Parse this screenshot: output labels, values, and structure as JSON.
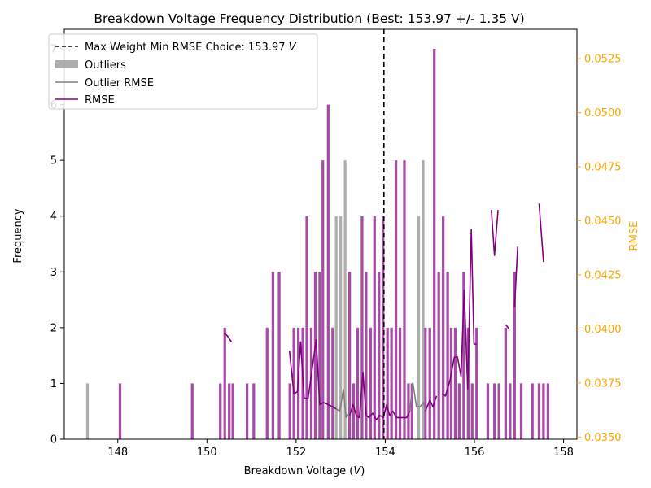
{
  "chart_data": {
    "type": "bar",
    "title": "Breakdown Voltage Frequency Distribution (Best: 153.97 +/- 1.35 V)",
    "xlabel_text": "Breakdown Voltage (",
    "xlabel_unit": "V",
    "xlabel_close": ")",
    "ylabel": "Frequency",
    "y2label": "RMSE",
    "xlim": [
      146.8,
      158.3
    ],
    "ylim": [
      0,
      7.35
    ],
    "y2lim": [
      0.0349,
      0.05386
    ],
    "xticks": [
      148,
      150,
      152,
      154,
      156,
      158
    ],
    "yticks": [
      0,
      1,
      2,
      3,
      4,
      5,
      6,
      7
    ],
    "y2ticks": [
      "0.0350",
      "0.0375",
      "0.0400",
      "0.0425",
      "0.0450",
      "0.0475",
      "0.0500",
      "0.0525"
    ],
    "bin_width": 0.0958,
    "best_value": 153.97,
    "legend": {
      "placement": "upper-left",
      "entries": {
        "best_text": "Max Weight Min RMSE Choice: 153.97 ",
        "best_unit": "V",
        "outliers": "Outliers",
        "outlier_rmse": "Outlier RMSE",
        "rmse": "RMSE"
      }
    },
    "colors": {
      "hist": "#800080",
      "outliers": "#a0a0a0",
      "rmse": "#800080",
      "outlier_rmse": "#808080",
      "right_axis": "#ffa500",
      "best_line": "#000000"
    },
    "histogram": [
      {
        "x": 148.05,
        "v": 1
      },
      {
        "x": 149.67,
        "v": 1
      },
      {
        "x": 150.3,
        "v": 1
      },
      {
        "x": 150.4,
        "v": 2
      },
      {
        "x": 150.5,
        "v": 1
      },
      {
        "x": 150.58,
        "v": 1
      },
      {
        "x": 150.9,
        "v": 1
      },
      {
        "x": 151.05,
        "v": 1
      },
      {
        "x": 151.35,
        "v": 2
      },
      {
        "x": 151.48,
        "v": 3
      },
      {
        "x": 151.62,
        "v": 3
      },
      {
        "x": 151.86,
        "v": 1
      },
      {
        "x": 151.95,
        "v": 2
      },
      {
        "x": 152.05,
        "v": 2
      },
      {
        "x": 152.15,
        "v": 2
      },
      {
        "x": 152.24,
        "v": 4
      },
      {
        "x": 152.34,
        "v": 2
      },
      {
        "x": 152.43,
        "v": 3
      },
      {
        "x": 152.53,
        "v": 3
      },
      {
        "x": 152.6,
        "v": 5
      },
      {
        "x": 152.72,
        "v": 6
      },
      {
        "x": 152.82,
        "v": 2
      },
      {
        "x": 153.2,
        "v": 3
      },
      {
        "x": 153.29,
        "v": 1
      },
      {
        "x": 153.38,
        "v": 2
      },
      {
        "x": 153.48,
        "v": 4
      },
      {
        "x": 153.57,
        "v": 3
      },
      {
        "x": 153.67,
        "v": 2
      },
      {
        "x": 153.76,
        "v": 4
      },
      {
        "x": 153.86,
        "v": 3
      },
      {
        "x": 153.95,
        "v": 4
      },
      {
        "x": 154.05,
        "v": 2
      },
      {
        "x": 154.14,
        "v": 2
      },
      {
        "x": 154.24,
        "v": 5
      },
      {
        "x": 154.33,
        "v": 2
      },
      {
        "x": 154.43,
        "v": 5
      },
      {
        "x": 154.52,
        "v": 1
      },
      {
        "x": 154.6,
        "v": 1
      },
      {
        "x": 154.9,
        "v": 2
      },
      {
        "x": 155.0,
        "v": 2
      },
      {
        "x": 155.1,
        "v": 7
      },
      {
        "x": 155.2,
        "v": 3
      },
      {
        "x": 155.3,
        "v": 4
      },
      {
        "x": 155.4,
        "v": 3
      },
      {
        "x": 155.48,
        "v": 2
      },
      {
        "x": 155.57,
        "v": 2
      },
      {
        "x": 155.66,
        "v": 1
      },
      {
        "x": 155.76,
        "v": 3
      },
      {
        "x": 155.86,
        "v": 2
      },
      {
        "x": 155.95,
        "v": 1
      },
      {
        "x": 156.05,
        "v": 2
      },
      {
        "x": 156.3,
        "v": 1
      },
      {
        "x": 156.45,
        "v": 1
      },
      {
        "x": 156.55,
        "v": 1
      },
      {
        "x": 156.7,
        "v": 2
      },
      {
        "x": 156.8,
        "v": 1
      },
      {
        "x": 156.9,
        "v": 3
      },
      {
        "x": 157.05,
        "v": 1
      },
      {
        "x": 157.3,
        "v": 1
      },
      {
        "x": 157.45,
        "v": 1
      },
      {
        "x": 157.55,
        "v": 1
      },
      {
        "x": 157.65,
        "v": 1
      }
    ],
    "outliers_hist": [
      {
        "x": 147.32,
        "v": 1
      },
      {
        "x": 152.9,
        "v": 4
      },
      {
        "x": 153.0,
        "v": 4
      },
      {
        "x": 153.1,
        "v": 5
      },
      {
        "x": 154.75,
        "v": 4
      },
      {
        "x": 154.85,
        "v": 5
      }
    ],
    "rmse_segments": [
      [
        [
          150.38,
          0.0398
        ],
        [
          150.45,
          0.0397
        ],
        [
          150.55,
          0.0394
        ]
      ],
      [
        [
          151.85,
          0.039
        ],
        [
          151.95,
          0.037
        ],
        [
          152.03,
          0.0371
        ],
        [
          152.1,
          0.0394
        ],
        [
          152.18,
          0.0368
        ],
        [
          152.27,
          0.0368
        ],
        [
          152.35,
          0.038
        ],
        [
          152.45,
          0.0395
        ],
        [
          152.53,
          0.0365
        ],
        [
          152.62,
          0.0366
        ],
        [
          152.72,
          0.0365
        ],
        [
          152.82,
          0.0364
        ],
        [
          152.9,
          0.0363
        ]
      ],
      [
        [
          153.2,
          0.036
        ],
        [
          153.28,
          0.0365
        ],
        [
          153.35,
          0.036
        ],
        [
          153.42,
          0.0359
        ],
        [
          153.5,
          0.038
        ],
        [
          153.57,
          0.036
        ],
        [
          153.63,
          0.0359
        ],
        [
          153.72,
          0.0361
        ],
        [
          153.8,
          0.0358
        ],
        [
          153.88,
          0.036
        ],
        [
          153.96,
          0.0359
        ],
        [
          154.03,
          0.0365
        ],
        [
          154.1,
          0.036
        ],
        [
          154.17,
          0.0362
        ],
        [
          154.25,
          0.0359
        ],
        [
          154.32,
          0.0359
        ],
        [
          154.4,
          0.0359
        ],
        [
          154.48,
          0.0359
        ],
        [
          154.55,
          0.0362
        ]
      ],
      [
        [
          154.9,
          0.0362
        ],
        [
          155.0,
          0.0367
        ],
        [
          155.07,
          0.0364
        ],
        [
          155.15,
          0.0369
        ]
      ],
      [
        [
          155.27,
          0.037
        ],
        [
          155.35,
          0.0369
        ],
        [
          155.45,
          0.0376
        ],
        [
          155.55,
          0.0387
        ],
        [
          155.62,
          0.0387
        ],
        [
          155.7,
          0.0378
        ],
        [
          155.77,
          0.0418
        ],
        [
          155.85,
          0.0372
        ],
        [
          155.93,
          0.0446
        ],
        [
          155.99,
          0.0393
        ],
        [
          156.05,
          0.0393
        ]
      ],
      [
        [
          156.38,
          0.0455
        ],
        [
          156.45,
          0.0434
        ],
        [
          156.53,
          0.0455
        ]
      ],
      [
        [
          156.7,
          0.0402
        ],
        [
          156.78,
          0.04
        ]
      ],
      [
        [
          156.9,
          0.041
        ],
        [
          156.97,
          0.0438
        ]
      ],
      [
        [
          157.45,
          0.0458
        ],
        [
          157.55,
          0.0431
        ]
      ]
    ],
    "outlier_rmse_segments": [
      [
        [
          152.9,
          0.0363
        ],
        [
          152.98,
          0.0362
        ],
        [
          153.06,
          0.0372
        ],
        [
          153.12,
          0.0359
        ],
        [
          153.2,
          0.0361
        ]
      ],
      [
        [
          154.55,
          0.0362
        ],
        [
          154.62,
          0.0375
        ],
        [
          154.7,
          0.0364
        ],
        [
          154.78,
          0.0364
        ],
        [
          154.86,
          0.0366
        ],
        [
          154.9,
          0.0362
        ]
      ]
    ]
  }
}
